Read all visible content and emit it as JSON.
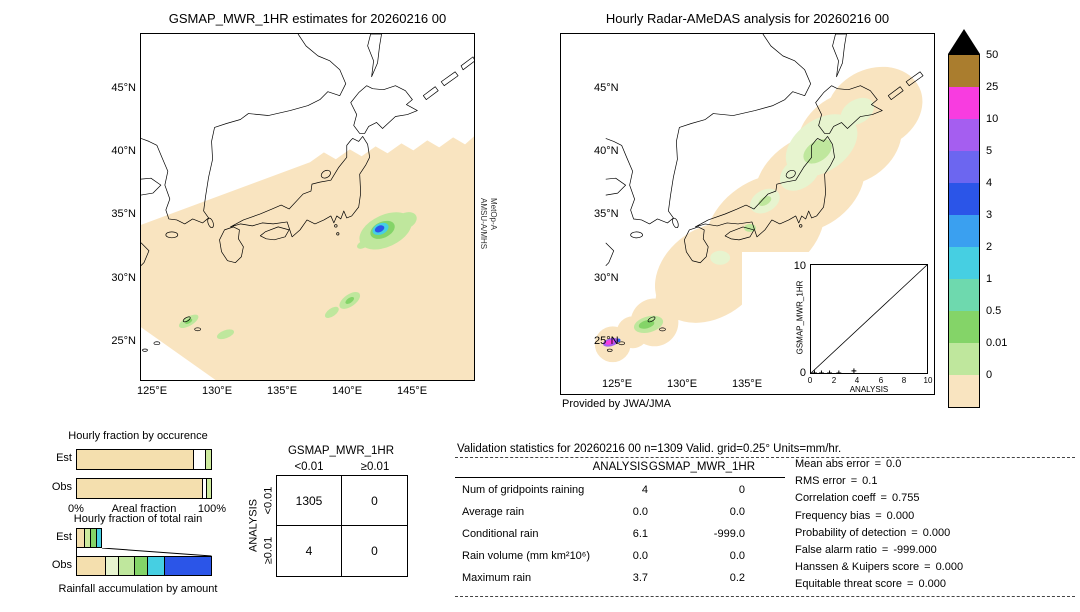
{
  "page": {
    "bg": "#ffffff"
  },
  "left_map": {
    "title": "GSMAP_MWR_1HR estimates for 20260216 00",
    "lat_labels": [
      "45°N",
      "40°N",
      "35°N",
      "30°N",
      "25°N"
    ],
    "lon_labels": [
      "125°E",
      "130°E",
      "135°E",
      "140°E",
      "145°E"
    ],
    "side_label_line1": "MetOp-A",
    "side_label_line2": "AMSU-A/MHS"
  },
  "right_map": {
    "title": "Hourly Radar-AMeDAS analysis for 20260216 00",
    "lat_labels": [
      "45°N",
      "40°N",
      "35°N",
      "30°N",
      "25°N"
    ],
    "lon_labels": [
      "125°E",
      "130°E",
      "135°E"
    ],
    "credit": "Provided by JWA/JMA"
  },
  "inset": {
    "xlabel": "ANALYSIS",
    "ylabel": "GSMAP_MWR_1HR",
    "x_ticks": [
      "0",
      "2",
      "4",
      "6",
      "8",
      "10"
    ],
    "y_ticks": [
      "10",
      "0"
    ],
    "xlim": [
      0,
      10
    ],
    "ylim": [
      0,
      10
    ],
    "points": [
      [
        0.3,
        0.0
      ],
      [
        0.9,
        0.0
      ],
      [
        1.6,
        0.0
      ],
      [
        2.4,
        0.0
      ],
      [
        3.7,
        0.2
      ]
    ]
  },
  "colorbar": {
    "blocks": [
      {
        "label": "50",
        "color": "#aa7d2e"
      },
      {
        "label": "25",
        "color": "#f83ce0"
      },
      {
        "label": "10",
        "color": "#a55ef0"
      },
      {
        "label": "5",
        "color": "#6c66f0"
      },
      {
        "label": "4",
        "color": "#2b55e8"
      },
      {
        "label": "3",
        "color": "#3aa0f0"
      },
      {
        "label": "2",
        "color": "#46cfe2"
      },
      {
        "label": "1",
        "color": "#6ed9ae"
      },
      {
        "label": "0.5",
        "color": "#84d468"
      },
      {
        "label": "0.01",
        "color": "#bfe79d"
      },
      {
        "label": "0",
        "color": "#f9e4c0"
      }
    ]
  },
  "occurrence": {
    "title": "Hourly fraction by occurence",
    "rows": [
      {
        "label": "Est",
        "segments": [
          {
            "color": "#f4dfae",
            "pct": 87
          },
          {
            "color": "#ffffff",
            "pct": 9
          },
          {
            "color": "#cdeb9e",
            "pct": 4
          }
        ]
      },
      {
        "label": "Obs",
        "segments": [
          {
            "color": "#f4dfae",
            "pct": 94
          },
          {
            "color": "#ffffff",
            "pct": 3
          },
          {
            "color": "#cdeb9e",
            "pct": 3
          }
        ]
      }
    ],
    "axis_left": "0%",
    "axis_center": "Areal fraction",
    "axis_right": "100%"
  },
  "total_rain": {
    "title": "Hourly fraction of total rain",
    "rows": [
      {
        "label": "Est",
        "width_pct": 19,
        "segments": [
          {
            "color": "#f4dfae",
            "pct": 32
          },
          {
            "color": "#cdeb9e",
            "pct": 26
          },
          {
            "color": "#84d468",
            "pct": 26
          },
          {
            "color": "#46cfe2",
            "pct": 16
          }
        ]
      },
      {
        "label": "Obs",
        "width_pct": 100,
        "segments": [
          {
            "color": "#f4dfae",
            "pct": 22
          },
          {
            "color": "#e7f4cf",
            "pct": 9
          },
          {
            "color": "#bfe79d",
            "pct": 12
          },
          {
            "color": "#84d468",
            "pct": 10
          },
          {
            "color": "#46cfe2",
            "pct": 13
          },
          {
            "color": "#2b55e8",
            "pct": 34
          }
        ]
      }
    ],
    "caption": "Rainfall accumulation by amount"
  },
  "contingency": {
    "header": "GSMAP_MWR_1HR",
    "col_labels": [
      "<0.01",
      "≥0.01"
    ],
    "row_axis": "ANALYSIS",
    "row_labels": [
      "<0.01",
      "≥0.01"
    ],
    "cells": [
      [
        "1305",
        "0"
      ],
      [
        "4",
        "0"
      ]
    ]
  },
  "validation": {
    "title": "Validation statistics for 20260216 00  n=1309 Valid. grid=0.25° Units=mm/hr.",
    "col_headers": [
      "ANALYSIS",
      "GSMAP_MWR_1HR"
    ],
    "equals_sign": "=",
    "rows": [
      {
        "label": "Num of gridpoints raining",
        "analysis": "4",
        "gsmap": "0"
      },
      {
        "label": "Average rain",
        "analysis": "0.0",
        "gsmap": "0.0"
      },
      {
        "label": "Conditional rain",
        "analysis": "6.1",
        "gsmap": "-999.0"
      },
      {
        "label": "Rain volume (mm km²10⁶)",
        "analysis": "0.0",
        "gsmap": "0.0"
      },
      {
        "label": "Maximum rain",
        "analysis": "3.7",
        "gsmap": "0.2"
      }
    ],
    "stats": [
      {
        "label": "Mean abs error",
        "value": "0.0"
      },
      {
        "label": "RMS error",
        "value": "0.1"
      },
      {
        "label": "Correlation coeff",
        "value": "0.755"
      },
      {
        "label": "Frequency bias",
        "value": "0.000"
      },
      {
        "label": "Probability of detection",
        "value": "0.000"
      },
      {
        "label": "False alarm ratio",
        "value": "-999.000"
      },
      {
        "label": "Hanssen & Kuipers score",
        "value": "0.000"
      },
      {
        "label": "Equitable threat score",
        "value": "0.000"
      }
    ]
  },
  "chart_data": [
    {
      "type": "bar",
      "title": "Hourly fraction by occurence",
      "orientation": "horizontal",
      "stacked": true,
      "categories": [
        "Est",
        "Obs"
      ],
      "xlabel": "Areal fraction",
      "xlim_pct": [
        0,
        100
      ],
      "rows_segments_pct": [
        [
          87,
          9,
          4
        ],
        [
          94,
          3,
          3
        ]
      ]
    },
    {
      "type": "bar",
      "title": "Hourly fraction of total rain",
      "orientation": "horizontal",
      "stacked": true,
      "categories": [
        "Est",
        "Obs"
      ],
      "caption": "Rainfall accumulation by amount",
      "rows_segments_pct": [
        [
          6,
          5,
          5,
          3
        ],
        [
          22,
          9,
          12,
          10,
          13,
          34
        ]
      ]
    },
    {
      "type": "table",
      "title": "Contingency table GSMAP_MWR_1HR vs ANALYSIS",
      "columns": [
        "<0.01",
        "≥0.01"
      ],
      "row_labels": [
        "<0.01",
        "≥0.01"
      ],
      "values": [
        [
          1305,
          0
        ],
        [
          4,
          0
        ]
      ]
    },
    {
      "type": "scatter",
      "title": "GSMAP_MWR_1HR vs ANALYSIS",
      "xlabel": "ANALYSIS",
      "ylabel": "GSMAP_MWR_1HR",
      "xlim": [
        0,
        10
      ],
      "ylim": [
        0,
        10
      ],
      "diagonal": true,
      "points": [
        [
          0.3,
          0.0
        ],
        [
          0.9,
          0.0
        ],
        [
          1.6,
          0.0
        ],
        [
          2.4,
          0.0
        ],
        [
          3.7,
          0.2
        ]
      ]
    },
    {
      "type": "table",
      "title": "Validation statistics",
      "columns": [
        "ANALYSIS",
        "GSMAP_MWR_1HR"
      ],
      "rows": [
        [
          "Num of gridpoints raining",
          4,
          0
        ],
        [
          "Average rain",
          0.0,
          0.0
        ],
        [
          "Conditional rain",
          6.1,
          -999.0
        ],
        [
          "Rain volume (mm km²10⁶)",
          0.0,
          0.0
        ],
        [
          "Maximum rain",
          3.7,
          0.2
        ]
      ]
    },
    {
      "type": "table",
      "title": "Scores",
      "rows": [
        [
          "Mean abs error",
          0.0
        ],
        [
          "RMS error",
          0.1
        ],
        [
          "Correlation coeff",
          0.755
        ],
        [
          "Frequency bias",
          0.0
        ],
        [
          "Probability of detection",
          0.0
        ],
        [
          "False alarm ratio",
          -999.0
        ],
        [
          "Hanssen & Kuipers score",
          0.0
        ],
        [
          "Equitable threat score",
          0.0
        ]
      ]
    },
    {
      "type": "heatmap",
      "title": "Rain rate colour scale (mm/hr)",
      "levels": [
        0,
        0.01,
        0.5,
        1,
        2,
        3,
        4,
        5,
        10,
        25,
        50
      ],
      "colors_bottom_to_top": [
        "#f9e4c0",
        "#bfe79d",
        "#84d468",
        "#6ed9ae",
        "#46cfe2",
        "#3aa0f0",
        "#2b55e8",
        "#6c66f0",
        "#a55ef0",
        "#f83ce0",
        "#aa7d2e"
      ]
    }
  ]
}
